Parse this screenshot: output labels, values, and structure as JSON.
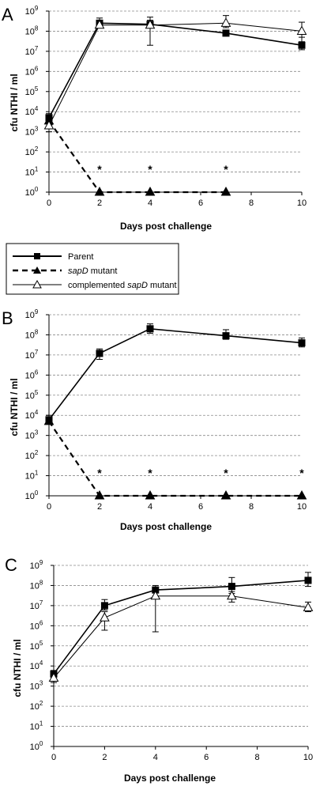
{
  "chart_data": [
    {
      "panel": "A",
      "type": "line",
      "xlabel": "Days post challenge",
      "ylabel": "cfu NTHI / ml",
      "xlim": [
        0,
        10
      ],
      "xticks": [
        "0",
        "2",
        "4",
        "6",
        "8",
        "10"
      ],
      "yscale": "log",
      "ylim": [
        1,
        1000000000
      ],
      "yticks": [
        {
          "base": "10",
          "exp": "0"
        },
        {
          "base": "10",
          "exp": "1"
        },
        {
          "base": "10",
          "exp": "2"
        },
        {
          "base": "10",
          "exp": "3"
        },
        {
          "base": "10",
          "exp": "4"
        },
        {
          "base": "10",
          "exp": "5"
        },
        {
          "base": "10",
          "exp": "6"
        },
        {
          "base": "10",
          "exp": "7"
        },
        {
          "base": "10",
          "exp": "8"
        },
        {
          "base": "10",
          "exp": "9"
        }
      ],
      "grid": true,
      "annotations": [
        {
          "text": "*",
          "x": 2
        },
        {
          "text": "*",
          "x": 4
        },
        {
          "text": "*",
          "x": 7
        }
      ],
      "series": [
        {
          "id": "parent",
          "x": [
            0,
            2,
            4,
            7,
            10
          ],
          "y": [
            5000,
            250000000,
            220000000,
            80000000,
            20000000
          ],
          "err_low": [
            3000,
            150000000,
            150000000,
            60000000,
            12000000
          ],
          "err_high": [
            8000,
            450000000,
            350000000,
            100000000,
            50000000
          ]
        },
        {
          "id": "sapd",
          "x": [
            0,
            2,
            4,
            7,
            10
          ],
          "y": [
            3500,
            1,
            1,
            1,
            null
          ],
          "err_low": [
            null,
            null,
            null,
            null,
            null
          ],
          "err_high": [
            null,
            null,
            null,
            null,
            null
          ]
        },
        {
          "id": "comp",
          "x": [
            0,
            2,
            4,
            7,
            10
          ],
          "y": [
            2000,
            200000000,
            200000000,
            250000000,
            100000000
          ],
          "err_low": [
            1000,
            150000000,
            20000000,
            150000000,
            30000000
          ],
          "err_high": [
            2500,
            350000000,
            500000000,
            600000000,
            280000000
          ]
        }
      ]
    },
    {
      "panel": "B",
      "type": "line",
      "xlabel": "Days post challenge",
      "ylabel": "cfu NTHI / ml",
      "xlim": [
        0,
        10
      ],
      "xticks": [
        "0",
        "2",
        "4",
        "6",
        "8",
        "10"
      ],
      "yscale": "log",
      "ylim": [
        1,
        1000000000
      ],
      "yticks": [
        {
          "base": "10",
          "exp": "0"
        },
        {
          "base": "10",
          "exp": "1"
        },
        {
          "base": "10",
          "exp": "2"
        },
        {
          "base": "10",
          "exp": "3"
        },
        {
          "base": "10",
          "exp": "4"
        },
        {
          "base": "10",
          "exp": "5"
        },
        {
          "base": "10",
          "exp": "6"
        },
        {
          "base": "10",
          "exp": "7"
        },
        {
          "base": "10",
          "exp": "8"
        },
        {
          "base": "10",
          "exp": "9"
        }
      ],
      "grid": true,
      "annotations": [
        {
          "text": "*",
          "x": 2
        },
        {
          "text": "*",
          "x": 4
        },
        {
          "text": "*",
          "x": 7
        },
        {
          "text": "*",
          "x": 10
        }
      ],
      "series": [
        {
          "id": "parent",
          "x": [
            0,
            2,
            4,
            7,
            10
          ],
          "y": [
            6000,
            12000000,
            200000000,
            90000000,
            40000000
          ],
          "err_low": [
            4000,
            6000000,
            120000000,
            60000000,
            25000000
          ],
          "err_high": [
            10000,
            20000000,
            350000000,
            180000000,
            70000000
          ]
        },
        {
          "id": "sapd",
          "x": [
            0,
            2,
            4,
            7,
            10
          ],
          "y": [
            5000,
            1,
            1,
            1,
            1
          ],
          "err_low": [
            null,
            null,
            null,
            null,
            null
          ],
          "err_high": [
            null,
            null,
            null,
            null,
            null
          ]
        }
      ]
    },
    {
      "panel": "C",
      "type": "line",
      "xlabel": "Days post challenge",
      "ylabel": "cfu NTHI / ml",
      "xlim": [
        0,
        10
      ],
      "xticks": [
        "0",
        "2",
        "4",
        "6",
        "8",
        "10"
      ],
      "yscale": "log",
      "ylim": [
        1,
        1000000000
      ],
      "yticks": [
        {
          "base": "10",
          "exp": "0"
        },
        {
          "base": "10",
          "exp": "1"
        },
        {
          "base": "10",
          "exp": "2"
        },
        {
          "base": "10",
          "exp": "3"
        },
        {
          "base": "10",
          "exp": "4"
        },
        {
          "base": "10",
          "exp": "5"
        },
        {
          "base": "10",
          "exp": "6"
        },
        {
          "base": "10",
          "exp": "7"
        },
        {
          "base": "10",
          "exp": "8"
        },
        {
          "base": "10",
          "exp": "9"
        }
      ],
      "grid": true,
      "annotations": [],
      "series": [
        {
          "id": "parent",
          "x": [
            0,
            2,
            4,
            7,
            10
          ],
          "y": [
            4000,
            10000000,
            60000000,
            90000000,
            180000000
          ],
          "err_low": [
            2000,
            6000000,
            30000000,
            40000000,
            90000000
          ],
          "err_high": [
            6000,
            20000000,
            100000000,
            250000000,
            450000000
          ]
        },
        {
          "id": "comp",
          "x": [
            0,
            2,
            4,
            7,
            10
          ],
          "y": [
            2500,
            2500000,
            30000000,
            30000000,
            8000000
          ],
          "err_low": [
            1500,
            600000,
            500000,
            15000000,
            5000000
          ],
          "err_high": [
            4000,
            5000000,
            60000000,
            50000000,
            15000000
          ]
        }
      ]
    }
  ],
  "legend": {
    "placement": "between panels A and B",
    "entries": [
      {
        "id": "parent",
        "text": "Parent",
        "italic_prefix": ""
      },
      {
        "id": "sapd",
        "text": " mutant",
        "italic_prefix": "sapD"
      },
      {
        "id": "comp",
        "text": " mutant",
        "italic_prefix": "complemented sapD"
      }
    ]
  }
}
